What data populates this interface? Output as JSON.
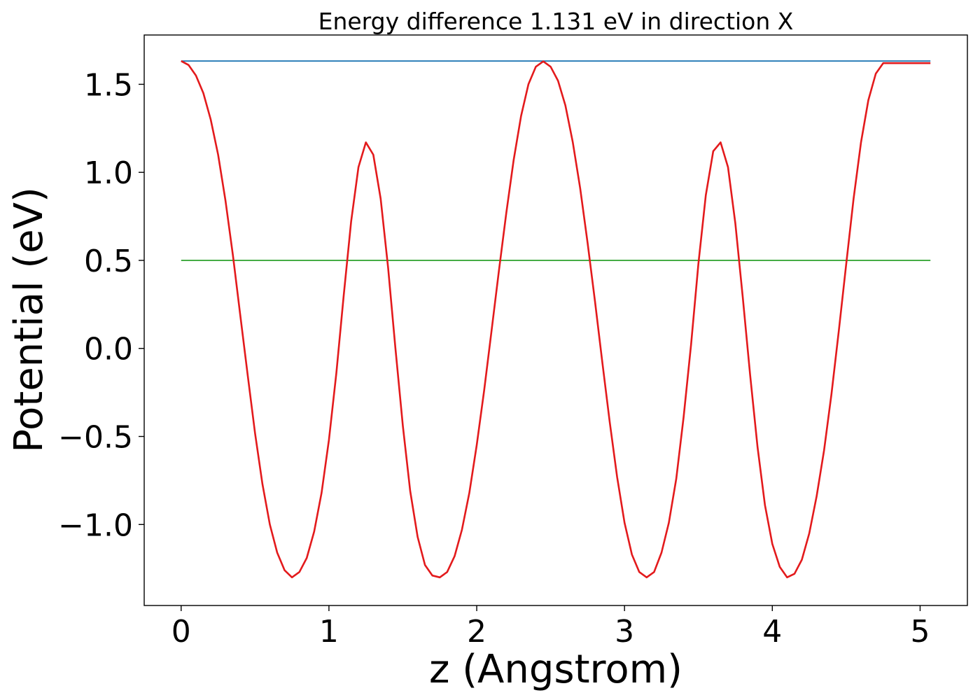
{
  "chart_data": {
    "type": "line",
    "title": "Energy difference 1.131 eV in direction X",
    "xlabel": "z (Angstrom)",
    "ylabel": "Potential (eV)",
    "xlim": [
      -0.25,
      5.32
    ],
    "ylim": [
      -1.46,
      1.78
    ],
    "xticks": [
      0,
      1,
      2,
      3,
      4,
      5
    ],
    "xtick_labels": [
      "0",
      "1",
      "2",
      "3",
      "4",
      "5"
    ],
    "yticks": [
      -1.0,
      -0.5,
      0.0,
      0.5,
      1.0,
      1.5
    ],
    "ytick_labels": [
      "−1.0",
      "−0.5",
      "0.0",
      "0.5",
      "1.0",
      "1.5"
    ],
    "grid": false,
    "series": [
      {
        "color": "#1f77b4",
        "x": [
          0.0,
          5.07
        ],
        "y": [
          1.632,
          1.632
        ]
      },
      {
        "color": "#2ca02c",
        "x": [
          0.0,
          5.07
        ],
        "y": [
          0.5,
          0.5
        ]
      },
      {
        "color": "#e31a1c",
        "x": [
          0.0,
          0.05,
          0.1,
          0.15,
          0.2,
          0.25,
          0.3,
          0.35,
          0.4,
          0.45,
          0.5,
          0.55,
          0.6,
          0.65,
          0.7,
          0.75,
          0.8,
          0.85,
          0.9,
          0.95,
          1.0,
          1.05,
          1.1,
          1.15,
          1.2,
          1.25,
          1.3,
          1.35,
          1.4,
          1.45,
          1.5,
          1.55,
          1.6,
          1.65,
          1.7,
          1.75,
          1.8,
          1.85,
          1.9,
          1.95,
          2.0,
          2.05,
          2.1,
          2.15,
          2.2,
          2.25,
          2.3,
          2.35,
          2.4,
          2.45,
          2.5,
          2.55,
          2.6,
          2.65,
          2.7,
          2.75,
          2.8,
          2.85,
          2.9,
          2.95,
          3.0,
          3.05,
          3.1,
          3.15,
          3.2,
          3.25,
          3.3,
          3.35,
          3.4,
          3.45,
          3.5,
          3.55,
          3.6,
          3.65,
          3.7,
          3.75,
          3.8,
          3.85,
          3.9,
          3.95,
          4.0,
          4.05,
          4.1,
          4.15,
          4.2,
          4.25,
          4.3,
          4.35,
          4.4,
          4.45,
          4.5,
          4.55,
          4.6,
          4.65,
          4.7,
          4.75,
          4.8,
          4.85,
          4.9,
          4.95,
          5.0,
          5.05,
          5.07
        ],
        "y": [
          1.632,
          1.61,
          1.55,
          1.45,
          1.3,
          1.1,
          0.84,
          0.53,
          0.19,
          -0.15,
          -0.48,
          -0.77,
          -1.0,
          -1.16,
          -1.26,
          -1.3,
          -1.27,
          -1.19,
          -1.04,
          -0.82,
          -0.52,
          -0.14,
          0.3,
          0.72,
          1.03,
          1.17,
          1.1,
          0.85,
          0.46,
          0.0,
          -0.44,
          -0.81,
          -1.07,
          -1.23,
          -1.29,
          -1.3,
          -1.27,
          -1.18,
          -1.03,
          -0.82,
          -0.55,
          -0.24,
          0.1,
          0.44,
          0.77,
          1.07,
          1.32,
          1.5,
          1.6,
          1.63,
          1.6,
          1.52,
          1.38,
          1.17,
          0.91,
          0.6,
          0.27,
          -0.08,
          -0.42,
          -0.73,
          -0.99,
          -1.17,
          -1.27,
          -1.3,
          -1.27,
          -1.16,
          -0.99,
          -0.74,
          -0.39,
          0.02,
          0.48,
          0.87,
          1.12,
          1.17,
          1.03,
          0.71,
          0.29,
          -0.15,
          -0.56,
          -0.89,
          -1.11,
          -1.24,
          -1.3,
          -1.28,
          -1.2,
          -1.05,
          -0.84,
          -0.58,
          -0.26,
          0.1,
          0.48,
          0.85,
          1.17,
          1.41,
          1.56,
          1.62,
          1.62,
          1.62,
          1.62,
          1.62,
          1.62,
          1.62,
          1.62
        ]
      }
    ]
  }
}
